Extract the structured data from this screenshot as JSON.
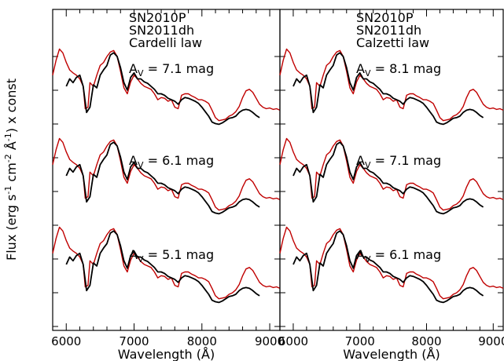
{
  "ylabel_parts": [
    "Flux (erg s",
    "-1",
    " cm",
    "-2",
    " Å",
    "-1",
    ") x const"
  ],
  "colors": {
    "sn2010p": "#000000",
    "sn2011dh": "#c00000"
  },
  "chart_data": {
    "type": "line",
    "xlabel": "Wavelength (Å)",
    "xlim": [
      5800,
      9150
    ],
    "xticks": [
      6000,
      7000,
      8000,
      9000
    ],
    "legend": [
      {
        "name": "SN2010P",
        "color": "#000000"
      },
      {
        "name": "SN2011dh",
        "color": "#c00000"
      }
    ],
    "panels": [
      {
        "law": "Cardelli law",
        "labels": [
          {
            "pre": "A",
            "sub": "V",
            "post": " = 7.1 mag"
          },
          {
            "pre": "A",
            "sub": "V",
            "post": " = 6.1 mag"
          },
          {
            "pre": "A",
            "sub": "V",
            "post": " = 5.1 mag"
          }
        ]
      },
      {
        "law": "Calzetti law",
        "labels": [
          {
            "pre": "A",
            "sub": "V",
            "post": " = 8.1 mag"
          },
          {
            "pre": "A",
            "sub": "V",
            "post": " = 7.1 mag"
          },
          {
            "pre": "A",
            "sub": "V",
            "post": " = 6.1 mag"
          }
        ]
      }
    ],
    "series": [
      {
        "name": "SN2011dh",
        "x": [
          5800,
          5850,
          5900,
          5950,
          6000,
          6050,
          6100,
          6150,
          6200,
          6250,
          6280,
          6320,
          6350,
          6400,
          6450,
          6500,
          6550,
          6600,
          6650,
          6700,
          6750,
          6800,
          6850,
          6900,
          6950,
          7000,
          7050,
          7100,
          7150,
          7200,
          7250,
          7300,
          7350,
          7400,
          7450,
          7500,
          7550,
          7600,
          7650,
          7700,
          7750,
          7800,
          7850,
          7900,
          7950,
          8000,
          8050,
          8100,
          8150,
          8200,
          8250,
          8300,
          8350,
          8400,
          8450,
          8500,
          8550,
          8600,
          8650,
          8700,
          8750,
          8800,
          8850,
          8900,
          8950,
          9000,
          9050,
          9100,
          9150
        ],
        "y": [
          0.55,
          0.75,
          0.9,
          0.85,
          0.72,
          0.62,
          0.58,
          0.55,
          0.5,
          0.4,
          0.1,
          0.12,
          0.45,
          0.4,
          0.55,
          0.68,
          0.72,
          0.8,
          0.86,
          0.88,
          0.8,
          0.6,
          0.38,
          0.3,
          0.46,
          0.55,
          0.5,
          0.44,
          0.4,
          0.38,
          0.36,
          0.3,
          0.22,
          0.25,
          0.24,
          0.2,
          0.22,
          0.12,
          0.1,
          0.28,
          0.3,
          0.3,
          0.27,
          0.25,
          0.22,
          0.22,
          0.2,
          0.17,
          0.08,
          -0.02,
          -0.06,
          -0.05,
          -0.04,
          0.0,
          0.02,
          0.06,
          0.13,
          0.25,
          0.34,
          0.36,
          0.32,
          0.24,
          0.16,
          0.12,
          0.1,
          0.11,
          0.09,
          0.1,
          0.08
        ]
      },
      {
        "name": "SN2010P",
        "x": [
          6000,
          6050,
          6100,
          6150,
          6200,
          6250,
          6300,
          6350,
          6400,
          6450,
          6500,
          6550,
          6600,
          6650,
          6700,
          6750,
          6800,
          6850,
          6900,
          6950,
          7000,
          7050,
          7100,
          7150,
          7200,
          7250,
          7300,
          7350,
          7400,
          7450,
          7500,
          7550,
          7600,
          7650,
          7700,
          7750,
          7800,
          7850,
          7900,
          7950,
          8000,
          8050,
          8100,
          8150,
          8200,
          8250,
          8300,
          8350,
          8400,
          8450,
          8500,
          8550,
          8600,
          8650,
          8700,
          8750,
          8800,
          8850
        ],
        "y": [
          0.4,
          0.5,
          0.45,
          0.52,
          0.55,
          0.4,
          0.05,
          0.12,
          0.42,
          0.38,
          0.55,
          0.62,
          0.68,
          0.82,
          0.85,
          0.8,
          0.65,
          0.45,
          0.35,
          0.52,
          0.58,
          0.5,
          0.5,
          0.46,
          0.44,
          0.4,
          0.36,
          0.3,
          0.3,
          0.28,
          0.24,
          0.22,
          0.2,
          0.16,
          0.22,
          0.25,
          0.24,
          0.22,
          0.2,
          0.17,
          0.12,
          0.06,
          0.0,
          -0.08,
          -0.1,
          -0.11,
          -0.09,
          -0.06,
          -0.03,
          -0.02,
          0.0,
          0.05,
          0.08,
          0.09,
          0.08,
          0.05,
          0.01,
          -0.02
        ]
      }
    ]
  }
}
